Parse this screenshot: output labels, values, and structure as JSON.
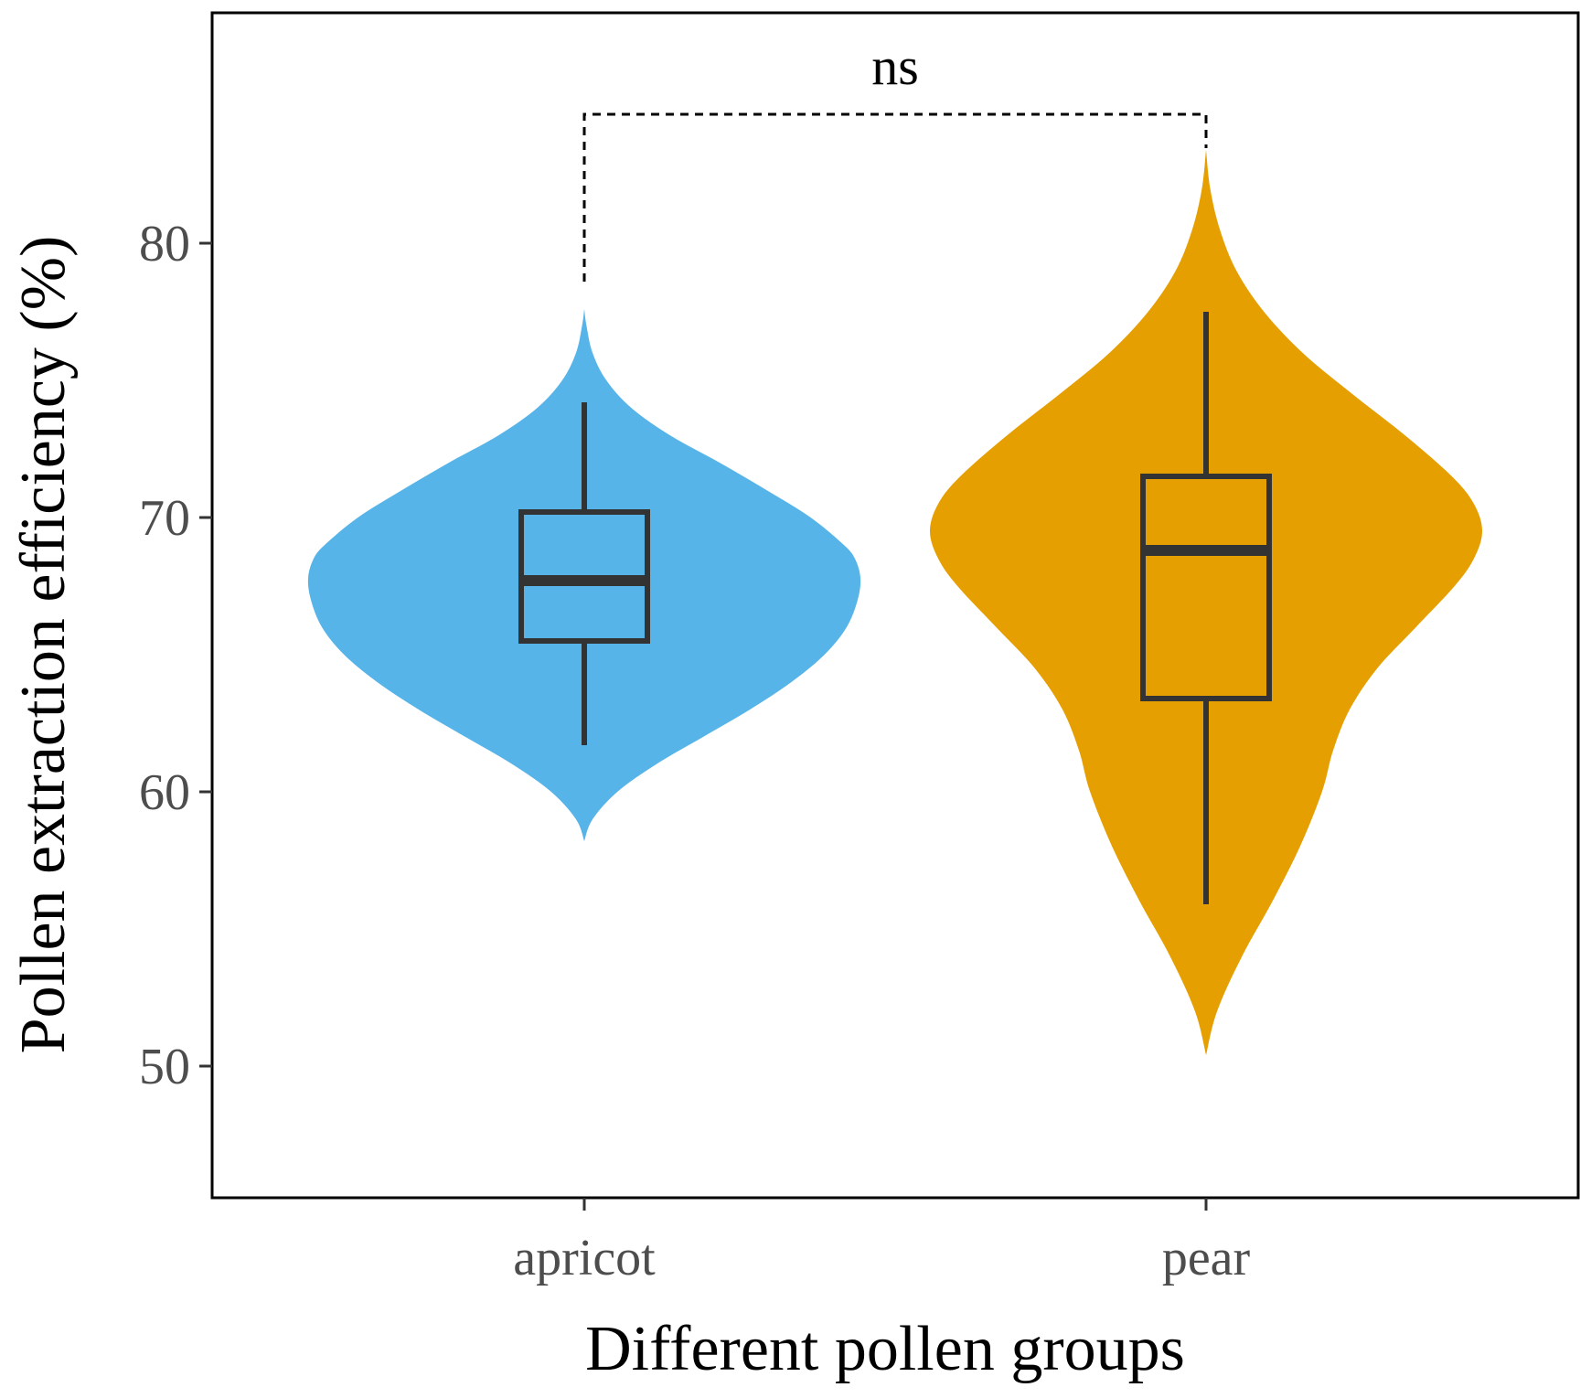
{
  "chart_data": {
    "type": "violin",
    "xlabel": "Different pollen groups",
    "ylabel": "Pollen extraction efficiency (%)",
    "categories": [
      "apricot",
      "pear"
    ],
    "ylim": [
      45.2,
      88.4
    ],
    "yticks": [
      50,
      60,
      70,
      80
    ],
    "grid": false,
    "legend": "none",
    "groups": [
      {
        "name": "apricot",
        "color": "#56B4E9",
        "box": {
          "whisker_low": 61.7,
          "q1": 65.5,
          "median": 67.7,
          "q3": 70.2,
          "whisker_high": 74.2
        },
        "density_range": [
          58.2,
          77.6
        ],
        "density_profile": [
          [
            58.2,
            0.0
          ],
          [
            59.0,
            0.03
          ],
          [
            60.0,
            0.12
          ],
          [
            61.0,
            0.26
          ],
          [
            62.0,
            0.43
          ],
          [
            63.0,
            0.6
          ],
          [
            64.0,
            0.75
          ],
          [
            65.0,
            0.87
          ],
          [
            66.0,
            0.95
          ],
          [
            67.0,
            0.99
          ],
          [
            67.8,
            1.0
          ],
          [
            68.5,
            0.98
          ],
          [
            69.0,
            0.94
          ],
          [
            70.0,
            0.82
          ],
          [
            71.0,
            0.66
          ],
          [
            72.0,
            0.49
          ],
          [
            73.0,
            0.31
          ],
          [
            74.0,
            0.17
          ],
          [
            75.0,
            0.08
          ],
          [
            76.0,
            0.03
          ],
          [
            77.0,
            0.008
          ],
          [
            77.6,
            0.0
          ]
        ]
      },
      {
        "name": "pear",
        "color": "#E69F00",
        "box": {
          "whisker_low": 55.9,
          "q1": 63.4,
          "median": 68.8,
          "q3": 71.5,
          "whisker_high": 77.5
        },
        "density_range": [
          50.4,
          83.4
        ],
        "density_profile": [
          [
            50.4,
            0.0
          ],
          [
            52.0,
            0.04
          ],
          [
            54.0,
            0.13
          ],
          [
            56.0,
            0.24
          ],
          [
            58.0,
            0.34
          ],
          [
            60.0,
            0.42
          ],
          [
            61.5,
            0.46
          ],
          [
            63.0,
            0.52
          ],
          [
            64.5,
            0.62
          ],
          [
            66.0,
            0.76
          ],
          [
            67.5,
            0.9
          ],
          [
            68.5,
            0.97
          ],
          [
            69.5,
            1.0
          ],
          [
            70.5,
            0.97
          ],
          [
            71.5,
            0.89
          ],
          [
            73.0,
            0.72
          ],
          [
            74.5,
            0.53
          ],
          [
            76.0,
            0.35
          ],
          [
            77.5,
            0.21
          ],
          [
            79.0,
            0.11
          ],
          [
            80.5,
            0.05
          ],
          [
            82.0,
            0.015
          ],
          [
            83.4,
            0.0
          ]
        ]
      }
    ],
    "annotations": [
      {
        "type": "significance",
        "label": "ns",
        "groups": [
          "apricot",
          "pear"
        ],
        "y": 84.7
      }
    ]
  }
}
